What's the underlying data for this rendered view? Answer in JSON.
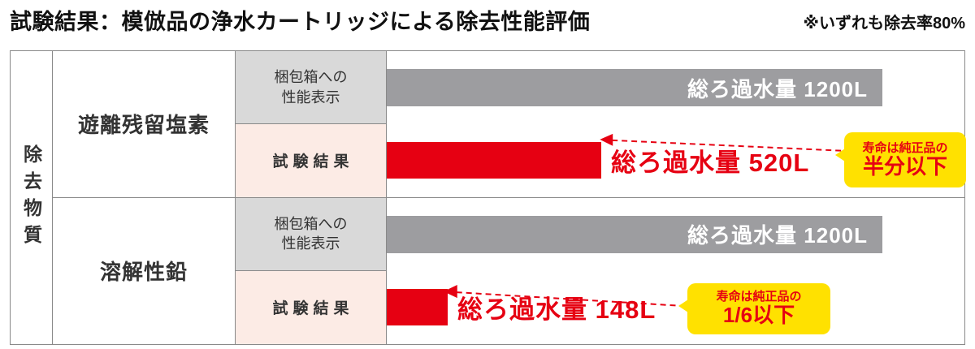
{
  "title": "試験結果：模倣品の浄水カートリッジによる除去性能評価",
  "note": "※いずれも除去率80%",
  "axis_label": "除去物質",
  "chart_data": {
    "type": "bar",
    "orientation": "horizontal",
    "max": 1200,
    "unit": "L",
    "groups": [
      {
        "substance": "遊離残留塩素",
        "rows": [
          {
            "kind": "claim",
            "label_line1": "梱包箱への",
            "label_line2": "性能表示",
            "value": 1200,
            "value_label": "総ろ過水量 1200L"
          },
          {
            "kind": "result",
            "label_line1": "試験結果",
            "value": 520,
            "value_label": "総ろ過水量 520L",
            "callout_line1": "寿命は純正品の",
            "callout_line2": "半分以下"
          }
        ]
      },
      {
        "substance": "溶解性鉛",
        "rows": [
          {
            "kind": "claim",
            "label_line1": "梱包箱への",
            "label_line2": "性能表示",
            "value": 1200,
            "value_label": "総ろ過水量 1200L"
          },
          {
            "kind": "result",
            "label_line1": "試験結果",
            "value": 148,
            "value_label": "総ろ過水量 148L",
            "callout_line1": "寿命は純正品の",
            "callout_line2": "1/6以下"
          }
        ]
      }
    ]
  },
  "colors": {
    "claim_bar": "#9d9da0",
    "result_bar": "#e60012",
    "claim_label_bg": "#d9d9d9",
    "result_label_bg": "#fcebe5",
    "callout_bg": "#ffe100",
    "callout_text": "#e60012",
    "border": "#898989",
    "claim_value_text": "#ffffff",
    "result_value_text": "#e60012"
  }
}
